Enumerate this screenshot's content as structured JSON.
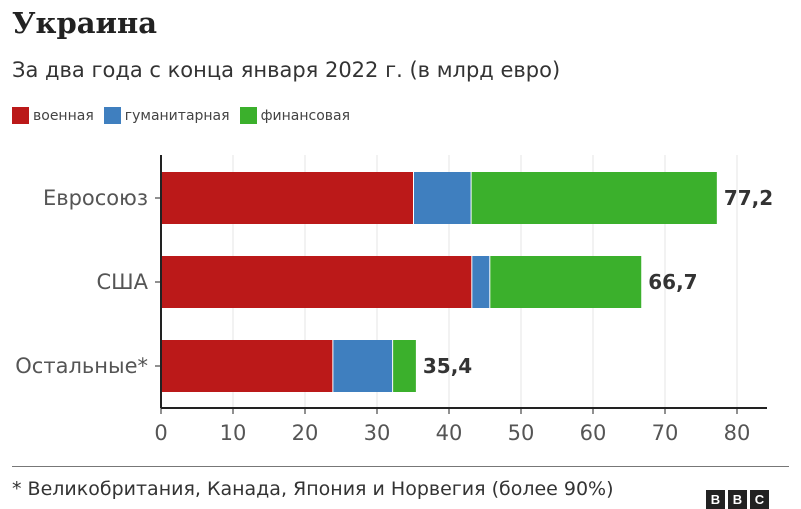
{
  "title": "Украина",
  "subtitle": "За два года с конца января 2022 г. (в млрд евро)",
  "chart_data": {
    "type": "bar",
    "orientation": "horizontal",
    "stacked": true,
    "categories": [
      "Евросоюз",
      "США",
      "Остальные*"
    ],
    "series": [
      {
        "name": "военная",
        "color": "#bb1919",
        "values": [
          35.0,
          43.1,
          23.8
        ]
      },
      {
        "name": "гуманитарная",
        "color": "#3f7fbf",
        "values": [
          8.0,
          2.5,
          8.3
        ]
      },
      {
        "name": "финансовая",
        "color": "#3bb02c",
        "values": [
          34.2,
          21.1,
          3.3
        ]
      }
    ],
    "totals": [
      "77,2",
      "66,7",
      "35,4"
    ],
    "totals_values": [
      77.2,
      66.7,
      35.4
    ],
    "xlim": [
      0,
      80
    ],
    "xticks": [
      "0",
      "10",
      "20",
      "30",
      "40",
      "50",
      "60",
      "70",
      "80"
    ],
    "grid": true,
    "legend": "top-left"
  },
  "footnote": "* Великобритания, Канада, Япония и Норвегия (более 90%)",
  "logo": "BBC"
}
